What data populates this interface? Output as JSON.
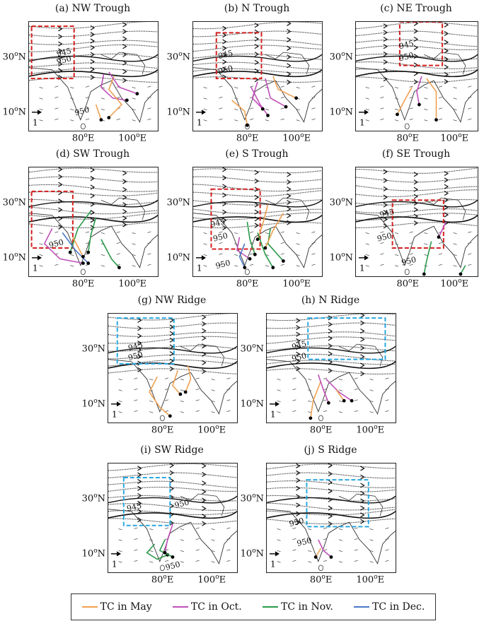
{
  "panels": [
    {
      "id": "a",
      "title": "(a) NW Trough",
      "box_type": "trough",
      "contours": [
        "945",
        "950",
        "950"
      ],
      "lat_labels": [
        "30oN",
        "10oN"
      ],
      "lon_labels": [
        "80oE",
        "100oE"
      ],
      "ref_vector": "1"
    },
    {
      "id": "b",
      "title": "(b) N Trough",
      "box_type": "trough",
      "contours": [
        "945",
        "950"
      ],
      "lat_labels": [
        "30oN",
        "10oN"
      ],
      "lon_labels": [
        "80oE",
        "100oE"
      ],
      "ref_vector": "1"
    },
    {
      "id": "c",
      "title": "(c) NE Trough",
      "box_type": "trough",
      "contours": [
        "945",
        "950"
      ],
      "lat_labels": [
        "30oN",
        "10oN"
      ],
      "lon_labels": [
        "80oE",
        "100oE"
      ],
      "ref_vector": "1"
    },
    {
      "id": "d",
      "title": "(d) SW Trough",
      "box_type": "trough",
      "contours": [
        "950"
      ],
      "lat_labels": [
        "30oN",
        "10oN"
      ],
      "lon_labels": [
        "80oE",
        "100oE"
      ],
      "ref_vector": "1"
    },
    {
      "id": "e",
      "title": "(e) S Trough",
      "box_type": "trough",
      "contours": [
        "945",
        "950",
        "950"
      ],
      "lat_labels": [
        "30oN",
        "10oN"
      ],
      "lon_labels": [
        "80oE",
        "100oE"
      ],
      "ref_vector": "1"
    },
    {
      "id": "f",
      "title": "(f) SE Trough",
      "box_type": "trough",
      "contours": [
        "945",
        "950",
        "950"
      ],
      "lat_labels": [
        "30oN",
        "10oN"
      ],
      "lon_labels": [
        "80oE",
        "100oE"
      ],
      "ref_vector": "1"
    },
    {
      "id": "g",
      "title": "(g) NW Ridge",
      "box_type": "ridge",
      "contours": [
        "945",
        "950"
      ],
      "lat_labels": [
        "30oN",
        "10oN"
      ],
      "lon_labels": [
        "80oE",
        "100oE"
      ],
      "ref_vector": "1"
    },
    {
      "id": "h",
      "title": "(h) N Ridge",
      "box_type": "ridge",
      "contours": [
        "945",
        "950"
      ],
      "lat_labels": [
        "30oN",
        "10oN"
      ],
      "lon_labels": [
        "80oE",
        "100oE"
      ],
      "ref_vector": "1"
    },
    {
      "id": "i",
      "title": "(i) SW Ridge",
      "box_type": "ridge",
      "contours": [
        "945",
        "950",
        "950"
      ],
      "lat_labels": [
        "30oN",
        "10oN"
      ],
      "lon_labels": [
        "80oE",
        "100oE"
      ],
      "ref_vector": "1"
    },
    {
      "id": "j",
      "title": "(j) S Ridge",
      "box_type": "ridge",
      "contours": [
        "950",
        "950"
      ],
      "lat_labels": [
        "30oN",
        "10oN"
      ],
      "lon_labels": [
        "80oE",
        "100oE"
      ],
      "ref_vector": "1"
    }
  ],
  "legend": [
    {
      "label": "TC in May",
      "color": "#f0a050"
    },
    {
      "label": "TC in Oct.",
      "color": "#c050b8"
    },
    {
      "label": "TC in Nov.",
      "color": "#2a9a4a"
    },
    {
      "label": "TC in Dec.",
      "color": "#4a7ac8"
    }
  ],
  "colors": {
    "trough_box": "#d42020",
    "ridge_box": "#2aa8e0"
  }
}
